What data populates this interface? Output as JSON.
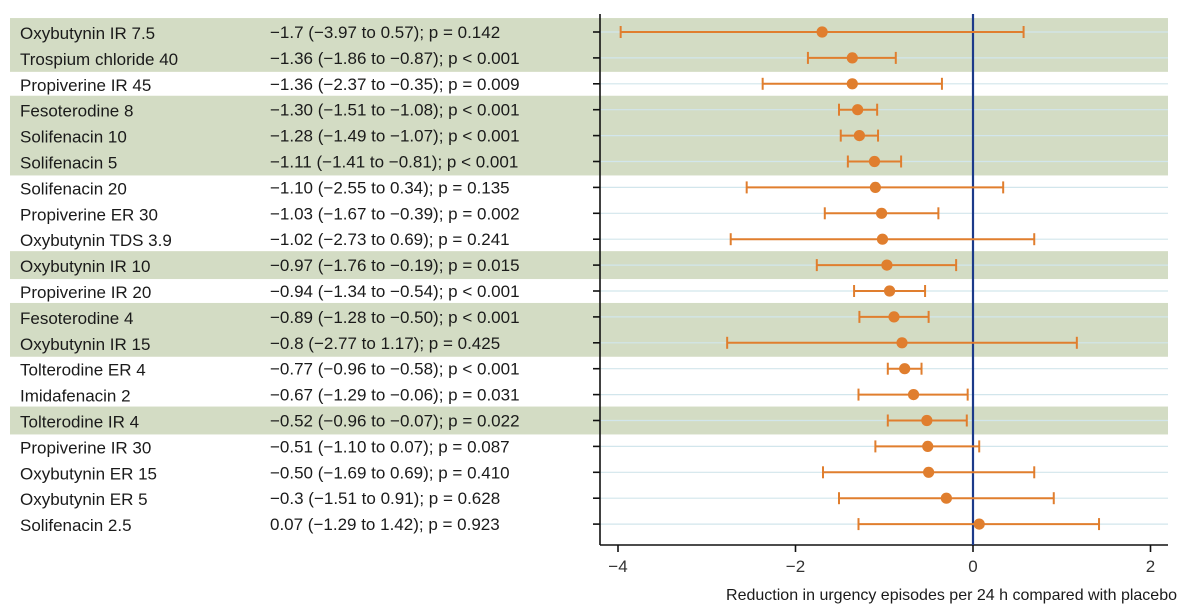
{
  "chart_data": {
    "type": "forest",
    "xlabel": "Reduction in urgency episodes per 24 h compared with placebo",
    "xlim": [
      -4.2,
      2.1
    ],
    "xticks": [
      -4,
      -2,
      0,
      2
    ],
    "xtick_labels": [
      "−4",
      "−2",
      "0",
      "2"
    ],
    "reference_line": 0,
    "colors": {
      "highlight_band": "#d3dcc4",
      "marker": "#e07e2e",
      "reference": "#1c3a8a",
      "gridline": "#d2e6ec"
    },
    "rows": [
      {
        "label": "Oxybutynin IR 7.5",
        "est": -1.7,
        "lo": -3.97,
        "hi": 0.57,
        "stat_pre": "−1.7 (−3.97 to 0.57); ",
        "stat_p": "p = 0.142",
        "highlight": true
      },
      {
        "label": "Trospium chloride 40",
        "est": -1.36,
        "lo": -1.86,
        "hi": -0.87,
        "stat_pre": "−1.36 (−1.86 to −0.87); ",
        "stat_p": "p < 0.001",
        "highlight": true
      },
      {
        "label": "Propiverine IR 45",
        "est": -1.36,
        "lo": -2.37,
        "hi": -0.35,
        "stat_pre": "−1.36 (−2.37 to −0.35); ",
        "stat_p": "p = 0.009",
        "highlight": false
      },
      {
        "label": "Fesoterodine 8",
        "est": -1.3,
        "lo": -1.51,
        "hi": -1.08,
        "stat_pre": "−1.30 (−1.51 to −1.08); ",
        "stat_p": "p < 0.001",
        "highlight": true
      },
      {
        "label": "Solifenacin 10",
        "est": -1.28,
        "lo": -1.49,
        "hi": -1.07,
        "stat_pre": "−1.28 (−1.49 to −1.07); ",
        "stat_p": "p < 0.001",
        "highlight": true
      },
      {
        "label": "Solifenacin 5",
        "est": -1.11,
        "lo": -1.41,
        "hi": -0.81,
        "stat_pre": "−1.11 (−1.41 to −0.81); ",
        "stat_p": "p < 0.001",
        "highlight": true
      },
      {
        "label": "Solifenacin 20",
        "est": -1.1,
        "lo": -2.55,
        "hi": 0.34,
        "stat_pre": "−1.10 (−2.55 to 0.34); ",
        "stat_p": "p = 0.135",
        "highlight": false
      },
      {
        "label": "Propiverine ER 30",
        "est": -1.03,
        "lo": -1.67,
        "hi": -0.39,
        "stat_pre": "−1.03 (−1.67 to −0.39); ",
        "stat_p": "p = 0.002",
        "highlight": false
      },
      {
        "label": "Oxybutynin TDS 3.9",
        "est": -1.02,
        "lo": -2.73,
        "hi": 0.69,
        "stat_pre": "−1.02 (−2.73 to 0.69); ",
        "stat_p": "p = 0.241",
        "highlight": false
      },
      {
        "label": "Oxybutynin IR 10",
        "est": -0.97,
        "lo": -1.76,
        "hi": -0.19,
        "stat_pre": "−0.97 (−1.76 to −0.19); ",
        "stat_p": "p = 0.015",
        "highlight": true
      },
      {
        "label": "Propiverine IR 20",
        "est": -0.94,
        "lo": -1.34,
        "hi": -0.54,
        "stat_pre": "−0.94 (−1.34 to −0.54); ",
        "stat_p": "p < 0.001",
        "highlight": false
      },
      {
        "label": "Fesoterodine 4",
        "est": -0.89,
        "lo": -1.28,
        "hi": -0.5,
        "stat_pre": "−0.89 (−1.28 to −0.50); ",
        "stat_p": "p < 0.001",
        "highlight": true
      },
      {
        "label": "Oxybutynin IR 15",
        "est": -0.8,
        "lo": -2.77,
        "hi": 1.17,
        "stat_pre": "−0.8 (−2.77 to 1.17); ",
        "stat_p": "p = 0.425",
        "highlight": true
      },
      {
        "label": "Tolterodine ER 4",
        "est": -0.77,
        "lo": -0.96,
        "hi": -0.58,
        "stat_pre": "−0.77 (−0.96 to −0.58); ",
        "stat_p": "p < 0.001",
        "highlight": false
      },
      {
        "label": "Imidafenacin 2",
        "est": -0.67,
        "lo": -1.29,
        "hi": -0.06,
        "stat_pre": "−0.67 (−1.29 to −0.06); ",
        "stat_p": "p = 0.031",
        "highlight": false
      },
      {
        "label": "Tolterodine IR 4",
        "est": -0.52,
        "lo": -0.96,
        "hi": -0.07,
        "stat_pre": "−0.52 (−0.96 to −0.07); ",
        "stat_p": "p = 0.022",
        "highlight": true
      },
      {
        "label": "Propiverine IR 30",
        "est": -0.51,
        "lo": -1.1,
        "hi": 0.07,
        "stat_pre": "−0.51 (−1.10 to 0.07); ",
        "stat_p": "p = 0.087",
        "highlight": false
      },
      {
        "label": "Oxybutynin ER 15",
        "est": -0.5,
        "lo": -1.69,
        "hi": 0.69,
        "stat_pre": "−0.50 (−1.69 to 0.69); ",
        "stat_p": "p = 0.410",
        "highlight": false
      },
      {
        "label": "Oxybutynin ER 5",
        "est": -0.3,
        "lo": -1.51,
        "hi": 0.91,
        "stat_pre": "−0.3 (−1.51 to 0.91); ",
        "stat_p": "p = 0.628",
        "highlight": false
      },
      {
        "label": "Solifenacin 2.5",
        "est": 0.07,
        "lo": -1.29,
        "hi": 1.42,
        "stat_pre": "0.07 (−1.29 to 1.42); ",
        "stat_p": "p = 0.923",
        "highlight": false
      }
    ]
  }
}
